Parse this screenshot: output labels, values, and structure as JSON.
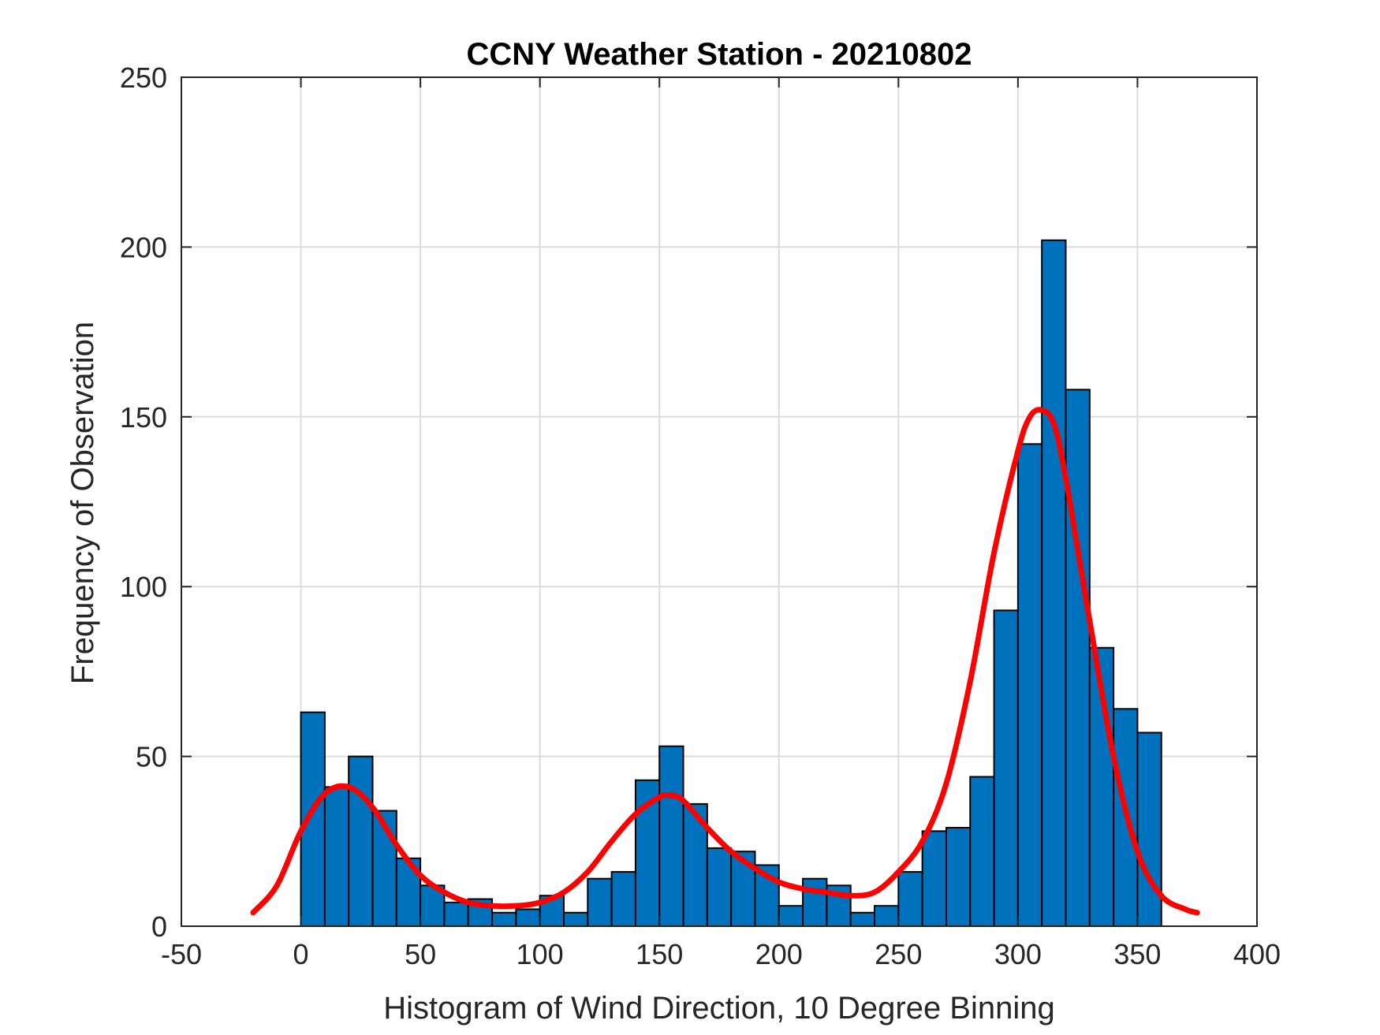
{
  "chart_data": {
    "type": "bar",
    "title": "CCNY Weather Station - 20210802",
    "xlabel": "Histogram of Wind Direction, 10 Degree Binning",
    "ylabel": "Frequency of Observation",
    "xlim": [
      -50,
      400
    ],
    "ylim": [
      0,
      250
    ],
    "xticks": [
      "-50",
      "0",
      "50",
      "100",
      "150",
      "200",
      "250",
      "300",
      "350",
      "400"
    ],
    "yticks": [
      "0",
      "50",
      "100",
      "150",
      "200",
      "250"
    ],
    "grid": true,
    "bin_width": 10,
    "bin_edges_start": [
      0,
      10,
      20,
      30,
      40,
      50,
      60,
      70,
      80,
      90,
      100,
      110,
      120,
      130,
      140,
      150,
      160,
      170,
      180,
      190,
      200,
      210,
      220,
      230,
      240,
      250,
      260,
      270,
      280,
      290,
      300,
      310,
      320,
      330,
      340,
      350
    ],
    "values": [
      63,
      41,
      50,
      34,
      20,
      12,
      7,
      8,
      4,
      5,
      9,
      4,
      14,
      16,
      43,
      53,
      36,
      23,
      22,
      18,
      6,
      14,
      12,
      4,
      6,
      16,
      28,
      29,
      44,
      93,
      142,
      202,
      158,
      82,
      64,
      57
    ],
    "bar_color": "#0072BD",
    "fit_curve": {
      "color": "#FF0000",
      "x": [
        -20,
        -10,
        0,
        10,
        20,
        30,
        40,
        50,
        60,
        70,
        80,
        90,
        100,
        110,
        120,
        130,
        140,
        150,
        155,
        160,
        170,
        180,
        190,
        200,
        210,
        220,
        230,
        240,
        250,
        260,
        270,
        280,
        290,
        300,
        305,
        310,
        315,
        320,
        330,
        340,
        350,
        360,
        370,
        375
      ],
      "y": [
        4,
        12,
        28,
        39,
        41,
        35,
        24,
        15,
        10,
        7,
        6,
        6,
        7,
        10,
        16,
        25,
        33,
        38,
        38.5,
        37,
        29,
        22,
        17,
        13,
        11,
        10,
        9,
        10,
        16,
        25,
        42,
        72,
        110,
        140,
        150,
        152,
        148,
        132,
        90,
        50,
        22,
        9,
        5,
        4
      ]
    }
  }
}
